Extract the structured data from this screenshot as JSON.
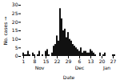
{
  "chart_data": {
    "type": "bar",
    "xlabel": "Date",
    "ylabel": "No. cases",
    "color": "#111111",
    "categories": [
      "1",
      null,
      null,
      null,
      null,
      null,
      null,
      "8",
      null,
      null,
      null,
      null,
      null,
      null,
      "15",
      null,
      null,
      null,
      null,
      null,
      null,
      "22",
      null,
      null,
      null,
      null,
      null,
      null,
      "29",
      null,
      null,
      null,
      null,
      null,
      null,
      "6",
      null,
      null,
      null,
      null,
      null,
      null,
      "13",
      null,
      null,
      null,
      null,
      null,
      null,
      "20",
      null,
      null,
      null,
      null,
      null,
      null,
      "27",
      null
    ],
    "values": [
      2,
      1,
      1,
      3,
      1,
      0,
      2,
      1,
      0,
      1,
      3,
      0,
      1,
      0,
      3,
      4,
      1,
      0,
      2,
      6,
      7,
      12,
      9,
      28,
      22,
      15,
      16,
      11,
      14,
      10,
      9,
      7,
      6,
      5,
      4,
      3,
      5,
      2,
      3,
      3,
      2,
      2,
      4,
      3,
      2,
      1,
      0,
      0,
      2,
      0,
      1,
      2,
      0,
      0,
      0,
      0,
      1,
      1
    ],
    "ylim": [
      0,
      30
    ],
    "yticks": [
      0,
      5,
      10,
      15,
      20,
      25,
      30
    ],
    "annotations": [
      {
        "text": "Nov",
        "x": 10
      },
      {
        "text": "Dec",
        "x": 35
      },
      {
        "text": "Jan",
        "x": 52
      }
    ]
  }
}
